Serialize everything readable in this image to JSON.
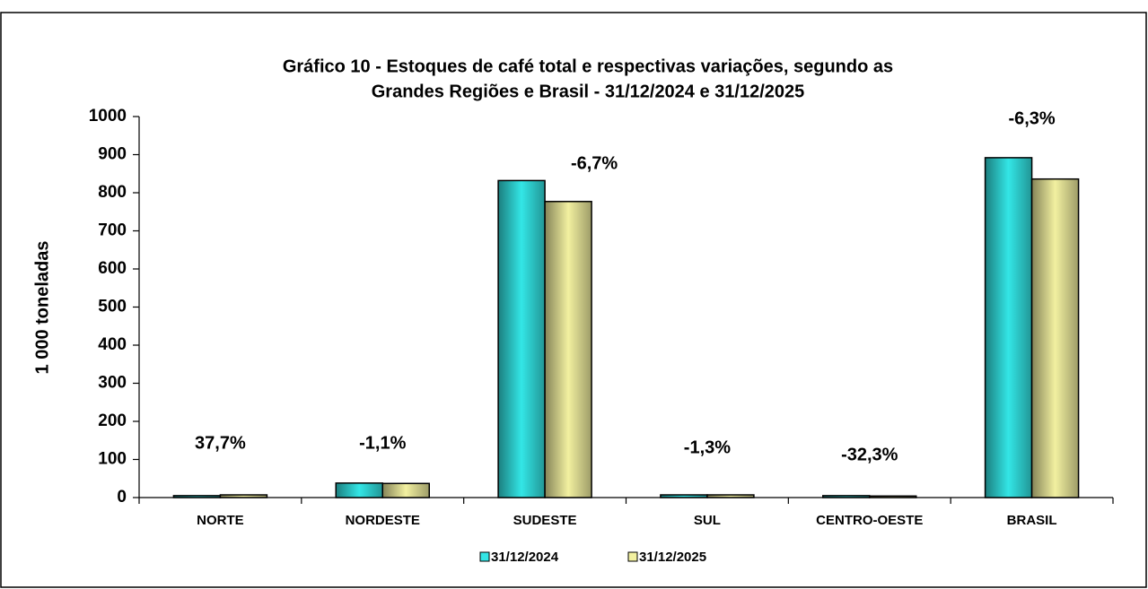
{
  "chart_data": {
    "type": "bar",
    "title": [
      "Gráfico 10 -  Estoques de café total e respectivas variações, segundo as",
      "Grandes Regiões e Brasil - 31/12/2024 e 31/12/2025"
    ],
    "y_label": "1 000 toneladas",
    "categories": [
      "NORTE",
      "NORDESTE",
      "SUDESTE",
      "SUL",
      "CENTRO-OESTE",
      "BRASIL"
    ],
    "series": [
      {
        "name": "31/12/2024",
        "color": "#33e6e6",
        "values": [
          5,
          38,
          832,
          7,
          5,
          892
        ]
      },
      {
        "name": "31/12/2025",
        "color": "#f2f0a0",
        "values": [
          7,
          37,
          777,
          7,
          4,
          836
        ]
      }
    ],
    "annotations": [
      "37,7%",
      "-1,1%",
      "-6,7%",
      "-1,3%",
      "-32,3%",
      "-6,3%"
    ],
    "ylim": [
      0,
      1000
    ],
    "yticks": [
      0,
      100,
      200,
      300,
      400,
      500,
      600,
      700,
      800,
      900,
      1000
    ],
    "legend": "bottom"
  }
}
